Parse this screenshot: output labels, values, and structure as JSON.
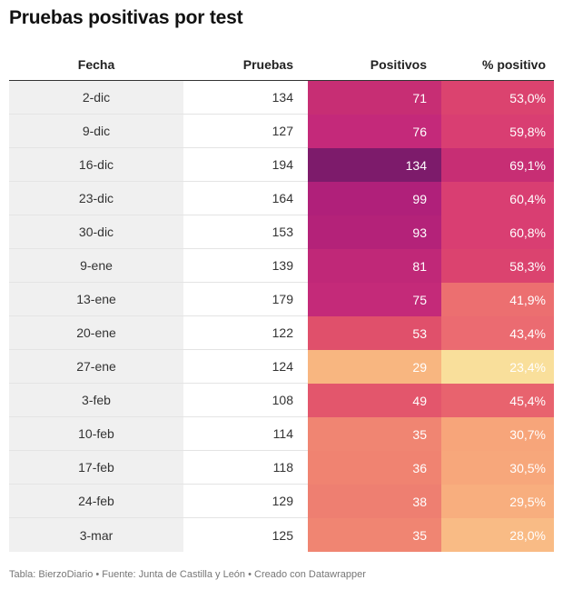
{
  "title": "Pruebas positivas por test",
  "footer": "Tabla: BierzoDiario • Fuente: Junta de Castilla y León • Creado con Datawrapper",
  "chart_data": {
    "type": "table",
    "columns": [
      "Fecha",
      "Pruebas",
      "Positivos",
      "% positivo"
    ],
    "rows": [
      {
        "fecha": "2-dic",
        "pruebas": "134",
        "positivos": "71",
        "pct": "53,0%",
        "pos_color": "#c72e74",
        "pct_color": "#db436f"
      },
      {
        "fecha": "9-dic",
        "pruebas": "127",
        "positivos": "76",
        "pct": "59,8%",
        "pos_color": "#c4297a",
        "pct_color": "#d93e72"
      },
      {
        "fecha": "16-dic",
        "pruebas": "194",
        "positivos": "134",
        "pct": "69,1%",
        "pos_color": "#7d1b6b",
        "pct_color": "#c72e74"
      },
      {
        "fecha": "23-dic",
        "pruebas": "164",
        "positivos": "99",
        "pct": "60,4%",
        "pos_color": "#b0207a",
        "pct_color": "#d93e72"
      },
      {
        "fecha": "30-dic",
        "pruebas": "153",
        "positivos": "93",
        "pct": "60,8%",
        "pos_color": "#b42279",
        "pct_color": "#d93e72"
      },
      {
        "fecha": "9-ene",
        "pruebas": "139",
        "positivos": "81",
        "pct": "58,3%",
        "pos_color": "#c02878",
        "pct_color": "#db436f"
      },
      {
        "fecha": "13-ene",
        "pruebas": "179",
        "positivos": "75",
        "pct": "41,9%",
        "pos_color": "#c42a79",
        "pct_color": "#ec6f70"
      },
      {
        "fecha": "20-ene",
        "pruebas": "122",
        "positivos": "53",
        "pct": "43,4%",
        "pos_color": "#e0506b",
        "pct_color": "#eb6b71"
      },
      {
        "fecha": "27-ene",
        "pruebas": "124",
        "positivos": "29",
        "pct": "23,4%",
        "pos_color": "#f8b680",
        "pct_color": "#f9df9b"
      },
      {
        "fecha": "3-feb",
        "pruebas": "108",
        "positivos": "49",
        "pct": "45,4%",
        "pos_color": "#e3566c",
        "pct_color": "#e8636e"
      },
      {
        "fecha": "10-feb",
        "pruebas": "114",
        "positivos": "35",
        "pct": "30,7%",
        "pos_color": "#f08572",
        "pct_color": "#f7a57a"
      },
      {
        "fecha": "17-feb",
        "pruebas": "118",
        "positivos": "36",
        "pct": "30,5%",
        "pos_color": "#f08371",
        "pct_color": "#f7a77b"
      },
      {
        "fecha": "24-feb",
        "pruebas": "129",
        "positivos": "38",
        "pct": "29,5%",
        "pos_color": "#ee7f71",
        "pct_color": "#f8ae7e"
      },
      {
        "fecha": "3-mar",
        "pruebas": "125",
        "positivos": "35",
        "pct": "28,0%",
        "pos_color": "#f08572",
        "pct_color": "#f9bb85"
      }
    ]
  }
}
